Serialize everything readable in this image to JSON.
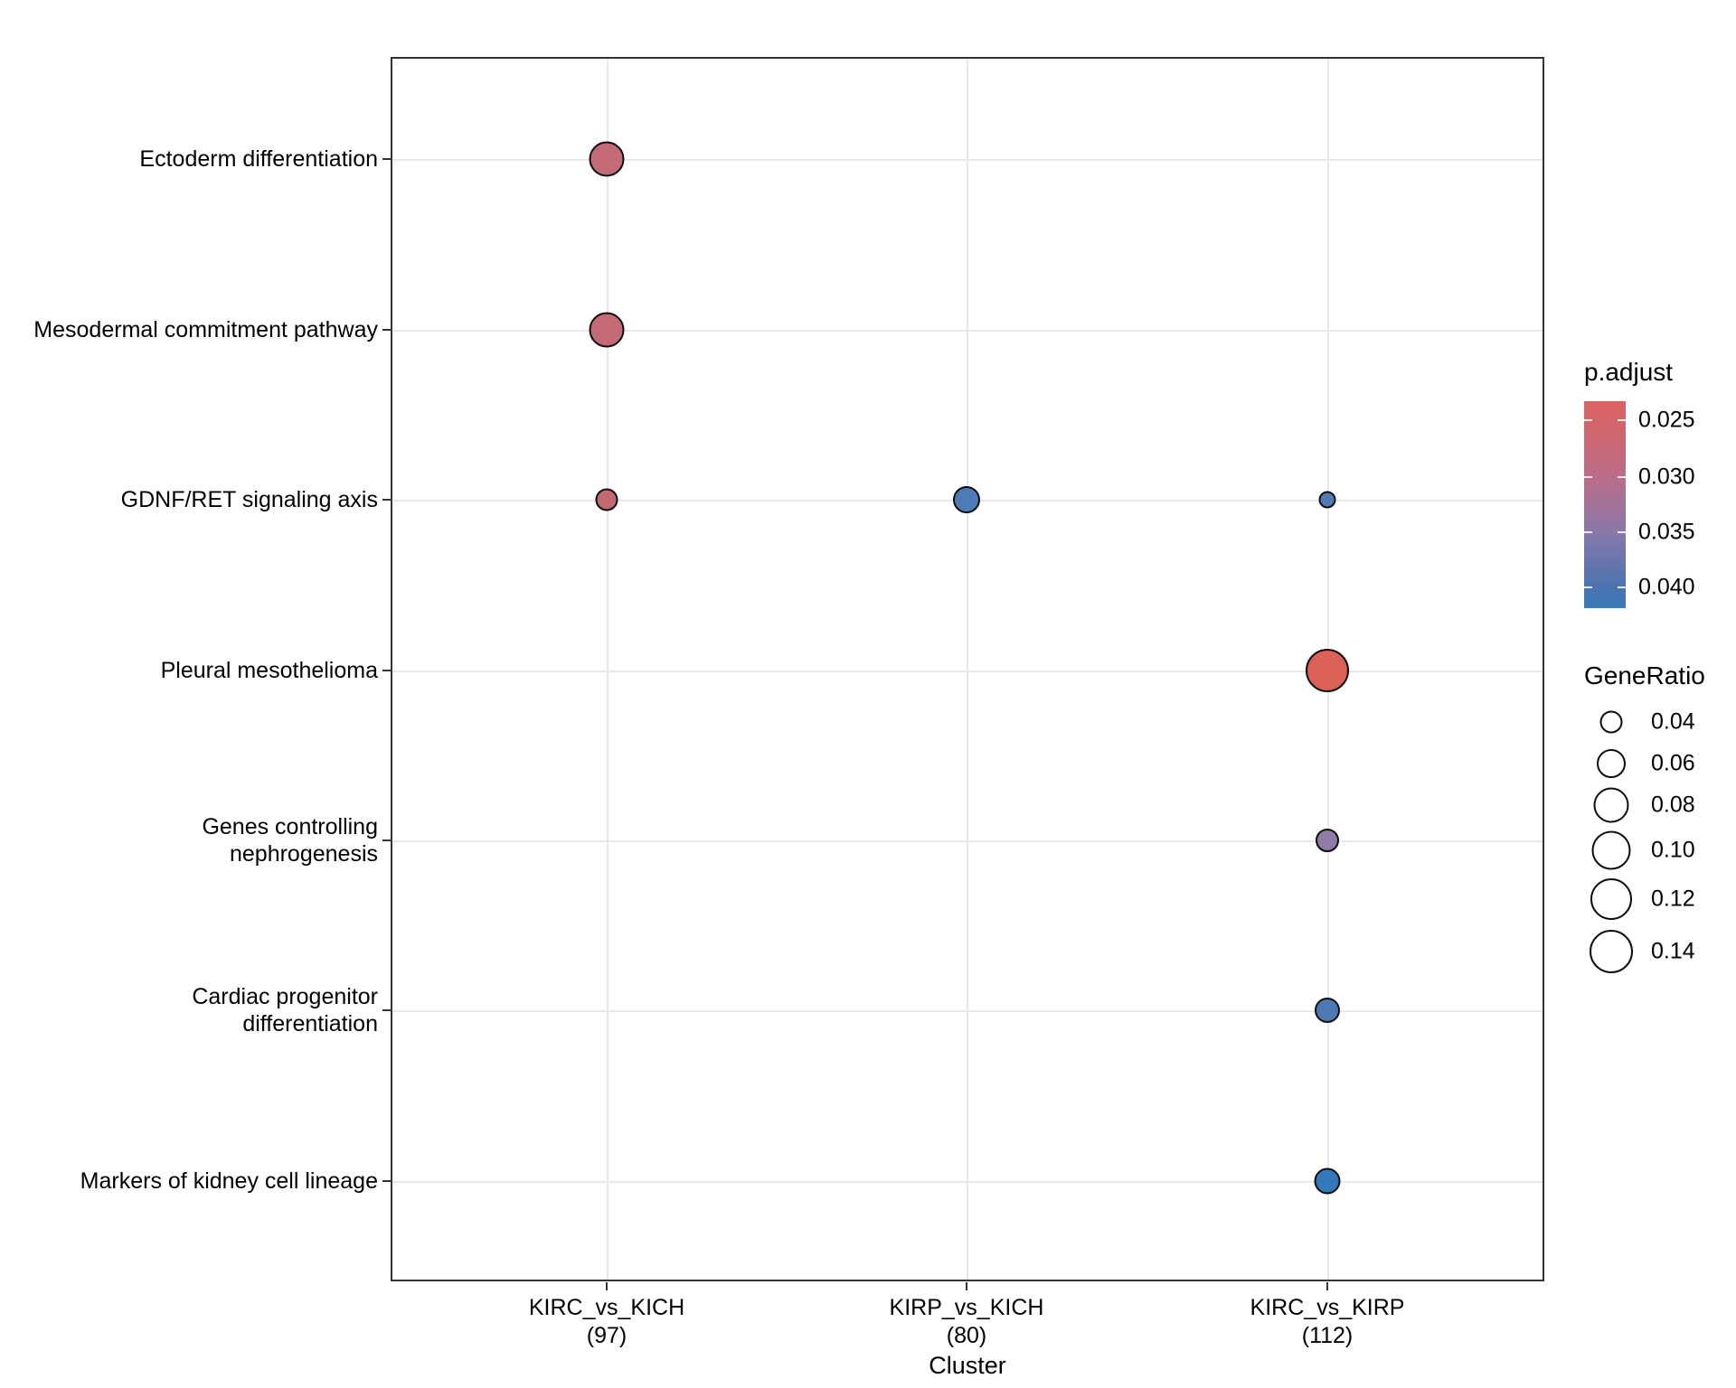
{
  "chart_data": {
    "type": "scatter",
    "subtype": "enrichment-dotplot",
    "title": "",
    "xlabel": "Cluster",
    "ylabel": "",
    "grid": true,
    "x_categories": [
      {
        "label": "KIRC_vs_KICH",
        "count": "(97)"
      },
      {
        "label": "KIRP_vs_KICH",
        "count": "(80)"
      },
      {
        "label": "KIRC_vs_KIRP",
        "count": "(112)"
      }
    ],
    "y_categories": [
      {
        "name": "Ectoderm differentiation",
        "lines": [
          "Ectoderm differentiation"
        ]
      },
      {
        "name": "Mesodermal commitment pathway",
        "lines": [
          "Mesodermal commitment pathway"
        ]
      },
      {
        "name": "GDNF/RET signaling axis",
        "lines": [
          "GDNF/RET signaling axis"
        ]
      },
      {
        "name": "Pleural mesothelioma",
        "lines": [
          "Pleural mesothelioma"
        ]
      },
      {
        "name": "Genes controlling nephrogenesis",
        "lines": [
          "Genes controlling",
          "nephrogenesis"
        ]
      },
      {
        "name": "Cardiac progenitor differentiation",
        "lines": [
          "Cardiac progenitor",
          "differentiation"
        ]
      },
      {
        "name": "Markers of kidney cell lineage",
        "lines": [
          "Markers of kidney cell lineage"
        ]
      }
    ],
    "points": [
      {
        "cluster": "KIRC_vs_KICH",
        "pathway": "Ectoderm differentiation",
        "col": 0,
        "row": 0,
        "gene_ratio": 0.072,
        "p_adjust": 0.027,
        "color": "#C46A75",
        "radius_px": 19.5
      },
      {
        "cluster": "KIRC_vs_KICH",
        "pathway": "Mesodermal commitment pathway",
        "col": 0,
        "row": 1,
        "gene_ratio": 0.072,
        "p_adjust": 0.027,
        "color": "#C46A75",
        "radius_px": 19.5
      },
      {
        "cluster": "KIRC_vs_KICH",
        "pathway": "GDNF/RET signaling axis",
        "col": 0,
        "row": 2,
        "gene_ratio": 0.041,
        "p_adjust": 0.027,
        "color": "#C16873",
        "radius_px": 12.5
      },
      {
        "cluster": "KIRP_vs_KICH",
        "pathway": "GDNF/RET signaling axis",
        "col": 1,
        "row": 2,
        "gene_ratio": 0.05,
        "p_adjust": 0.039,
        "color": "#4E7AB5",
        "radius_px": 15
      },
      {
        "cluster": "KIRC_vs_KIRP",
        "pathway": "GDNF/RET signaling axis",
        "col": 2,
        "row": 2,
        "gene_ratio": 0.027,
        "p_adjust": 0.039,
        "color": "#4F7CB5",
        "radius_px": 9.5
      },
      {
        "cluster": "KIRC_vs_KIRP",
        "pathway": "Pleural mesothelioma",
        "col": 2,
        "row": 3,
        "gene_ratio": 0.143,
        "p_adjust": 0.023,
        "color": "#D96157",
        "radius_px": 24
      },
      {
        "cluster": "KIRC_vs_KIRP",
        "pathway": "Genes controlling nephrogenesis",
        "col": 2,
        "row": 4,
        "gene_ratio": 0.045,
        "p_adjust": 0.035,
        "color": "#917BA7",
        "radius_px": 13
      },
      {
        "cluster": "KIRC_vs_KIRP",
        "pathway": "Cardiac progenitor differentiation",
        "col": 2,
        "row": 5,
        "gene_ratio": 0.045,
        "p_adjust": 0.039,
        "color": "#4D79B3",
        "radius_px": 14
      },
      {
        "cluster": "KIRC_vs_KIRP",
        "pathway": "Markers of kidney cell lineage",
        "col": 2,
        "row": 6,
        "gene_ratio": 0.054,
        "p_adjust": 0.041,
        "color": "#3378BA",
        "radius_px": 14.5
      }
    ],
    "legend_color": {
      "title": "p.adjust",
      "ticks": [
        "0.025",
        "0.030",
        "0.035",
        "0.040"
      ],
      "value_range": [
        0.023,
        0.042
      ],
      "gradient": [
        "#DB6260 0%",
        "#D46569 9%",
        "#BA6C89 37%",
        "#8A78A8 63%",
        "#4B73B1 90%",
        "#3A7BBA 100%"
      ]
    },
    "legend_size": {
      "title": "GeneRatio",
      "entries": [
        {
          "label": "0.04",
          "radius_px": 12.5
        },
        {
          "label": "0.06",
          "radius_px": 16
        },
        {
          "label": "0.08",
          "radius_px": 19.5
        },
        {
          "label": "0.10",
          "radius_px": 21.5
        },
        {
          "label": "0.12",
          "radius_px": 23
        },
        {
          "label": "0.14",
          "radius_px": 24
        }
      ]
    }
  }
}
